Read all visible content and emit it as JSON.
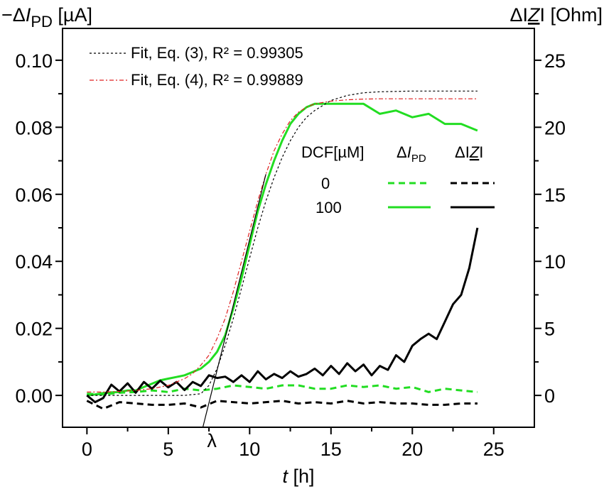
{
  "chart_data": {
    "type": "line",
    "y_left_label": "−ΔI_PD [µA]",
    "y_right_label": "ΔI Z I [Ohm]",
    "x_label": "t [h]",
    "x_lim": [
      -1.5,
      27.5
    ],
    "y_left_lim": [
      -0.0095,
      0.1095
    ],
    "y_right_lim": [
      -2.375,
      27.375
    ],
    "x_ticks": [
      0,
      5,
      10,
      15,
      20,
      25
    ],
    "x_tick_labels": [
      "0",
      "5",
      "10",
      "15",
      "20",
      "25"
    ],
    "y_left_ticks": [
      0.0,
      0.02,
      0.04,
      0.06,
      0.08,
      0.1
    ],
    "y_left_tick_labels": [
      "0.00",
      "0.02",
      "0.04",
      "0.06",
      "0.08",
      "0.10"
    ],
    "y_right_ticks": [
      0,
      5,
      10,
      15,
      20,
      25
    ],
    "y_right_tick_labels": [
      "0",
      "5",
      "10",
      "15",
      "20",
      "25"
    ],
    "lambda_marker": {
      "x": 7.5,
      "label": "λ"
    },
    "fit_legend": [
      {
        "text": "Fit, Eq. (3), R² = 0.99305",
        "color": "#000000",
        "dash": "3,3"
      },
      {
        "text": "Fit, Eq. (4), R² = 0.99889",
        "color": "#e02020",
        "dash": "6,3,2,3"
      }
    ],
    "legend_table": {
      "header": [
        "DCF[µM]",
        "ΔI_PD",
        "ΔI Z I"
      ],
      "rows": [
        {
          "dcf": "0",
          "pd_color": "#22dd22",
          "pd_dash": "9,6",
          "z_color": "#000000",
          "z_dash": "9,6"
        },
        {
          "dcf": "100",
          "pd_color": "#22dd22",
          "pd_dash": "",
          "z_color": "#000000",
          "z_dash": ""
        }
      ]
    },
    "series": [
      {
        "axis": "left",
        "color": "#22dd22",
        "dash": "",
        "width": 3,
        "x": [
          0,
          0.5,
          1,
          1.5,
          2,
          2.5,
          3,
          3.5,
          4,
          4.5,
          5,
          5.5,
          6,
          6.5,
          7,
          7.5,
          8,
          8.5,
          9,
          9.5,
          10,
          10.5,
          11,
          11.5,
          12,
          12.5,
          13,
          13.5,
          14,
          15,
          16,
          17,
          18,
          19,
          20,
          21,
          22,
          23,
          24
        ],
        "y": [
          0.0,
          0.0003,
          0.0007,
          0.0009,
          0.001,
          0.0015,
          0.0015,
          0.0025,
          0.0035,
          0.0045,
          0.005,
          0.0055,
          0.006,
          0.007,
          0.008,
          0.01,
          0.013,
          0.018,
          0.026,
          0.035,
          0.045,
          0.055,
          0.063,
          0.07,
          0.076,
          0.081,
          0.084,
          0.086,
          0.087,
          0.087,
          0.087,
          0.087,
          0.084,
          0.085,
          0.083,
          0.084,
          0.081,
          0.081,
          0.079
        ]
      },
      {
        "axis": "left",
        "color": "#22dd22",
        "dash": "9,6",
        "width": 3,
        "x": [
          0,
          1,
          2,
          3,
          4,
          5,
          6,
          7,
          8,
          9,
          10,
          11,
          12,
          13,
          14,
          15,
          16,
          17,
          18,
          19,
          20,
          21,
          22,
          23,
          24
        ],
        "y": [
          0.0005,
          0.0003,
          0.0008,
          0.001,
          0.0015,
          0.001,
          0.002,
          0.0015,
          0.002,
          0.003,
          0.0025,
          0.002,
          0.003,
          0.003,
          0.002,
          0.002,
          0.003,
          0.0025,
          0.003,
          0.002,
          0.0025,
          0.001,
          0.002,
          0.0015,
          0.001
        ]
      },
      {
        "axis": "right",
        "color": "#000000",
        "dash": "",
        "width": 3,
        "x": [
          0,
          0.5,
          1,
          1.5,
          2,
          2.5,
          3,
          3.5,
          4,
          4.5,
          5,
          5.5,
          6,
          6.5,
          7,
          7.5,
          8,
          8.5,
          9,
          9.5,
          10,
          10.5,
          11,
          11.5,
          12,
          12.5,
          13,
          13.5,
          14,
          14.5,
          15,
          15.5,
          16,
          16.5,
          17,
          17.5,
          18,
          18.5,
          19,
          19.5,
          20,
          20.5,
          21,
          21.5,
          22,
          22.5,
          23,
          23.5,
          24
        ],
        "y": [
          0.0,
          -0.5,
          -0.2,
          0.8,
          0.3,
          0.9,
          0.2,
          1.0,
          0.5,
          1.1,
          0.6,
          1.0,
          0.4,
          1.0,
          0.7,
          1.5,
          1.3,
          1.4,
          1.0,
          1.5,
          1.0,
          1.8,
          1.2,
          1.6,
          1.3,
          1.8,
          1.4,
          1.6,
          2.0,
          1.5,
          2.2,
          1.6,
          2.4,
          1.8,
          2.3,
          1.5,
          2.2,
          1.9,
          3.0,
          2.5,
          3.7,
          4.2,
          4.6,
          4.2,
          5.5,
          6.8,
          7.5,
          9.5,
          12.5
        ]
      },
      {
        "axis": "right",
        "color": "#000000",
        "dash": "9,6",
        "width": 3,
        "x": [
          0,
          1,
          2,
          3,
          4,
          5,
          6,
          7,
          8,
          9,
          10,
          11,
          12,
          13,
          14,
          15,
          16,
          17,
          18,
          19,
          20,
          21,
          22,
          23,
          24
        ],
        "y": [
          -0.4,
          -1.0,
          -0.5,
          -0.6,
          -0.7,
          -0.7,
          -0.6,
          -0.9,
          -0.4,
          -0.5,
          -0.6,
          -0.5,
          -0.4,
          -0.6,
          -0.5,
          -0.6,
          -0.4,
          -0.6,
          -0.5,
          -0.6,
          -0.6,
          -0.7,
          -0.7,
          -0.6,
          -0.6
        ]
      },
      {
        "axis": "left",
        "color": "#000000",
        "dash": "3,3",
        "width": 1.2,
        "x": [
          0,
          1,
          2,
          3,
          4,
          5,
          6,
          7,
          7.5,
          8,
          8.5,
          9,
          9.5,
          10,
          10.5,
          11,
          11.5,
          12,
          12.5,
          13,
          13.5,
          14,
          15,
          16,
          17,
          18,
          19,
          20,
          21,
          22,
          23,
          24
        ],
        "y": [
          0.0,
          0.0,
          0.0,
          0.0,
          0.0,
          0.0,
          0.0,
          0.0005,
          0.003,
          0.008,
          0.015,
          0.023,
          0.032,
          0.041,
          0.05,
          0.058,
          0.065,
          0.071,
          0.076,
          0.08,
          0.083,
          0.085,
          0.088,
          0.0895,
          0.0903,
          0.0906,
          0.0907,
          0.0908,
          0.0908,
          0.0908,
          0.0908,
          0.0908
        ]
      },
      {
        "axis": "left",
        "color": "#e02020",
        "dash": "6,3,2,3",
        "width": 1.2,
        "x": [
          0,
          1,
          2,
          3,
          4,
          5,
          6,
          6.5,
          7,
          7.5,
          8,
          8.5,
          9,
          9.5,
          10,
          10.5,
          11,
          11.5,
          12,
          12.5,
          13,
          13.5,
          14,
          15,
          16,
          17,
          18,
          19,
          20,
          21,
          22,
          23,
          24
        ],
        "y": [
          0.001,
          0.001,
          0.0012,
          0.0015,
          0.002,
          0.003,
          0.005,
          0.0065,
          0.009,
          0.012,
          0.017,
          0.023,
          0.031,
          0.04,
          0.049,
          0.058,
          0.066,
          0.073,
          0.078,
          0.082,
          0.0845,
          0.086,
          0.087,
          0.0878,
          0.0882,
          0.0884,
          0.0885,
          0.0885,
          0.0885,
          0.0885,
          0.0885,
          0.0885,
          0.0885
        ]
      },
      {
        "axis": "left",
        "color": "#000000",
        "dash": "",
        "width": 1.2,
        "x": [
          7.1,
          11.0
        ],
        "y": [
          -0.01,
          0.066
        ]
      }
    ]
  }
}
